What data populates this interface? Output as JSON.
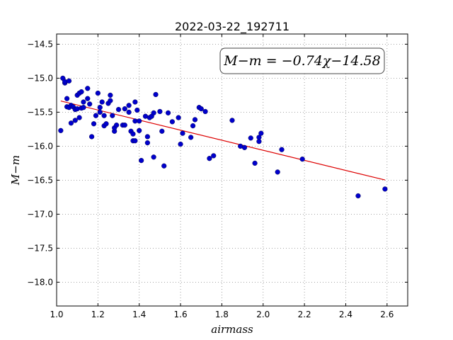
{
  "chart_data": {
    "type": "scatter",
    "title": "2022-03-22_192711",
    "xlabel": "airmass",
    "ylabel": "M−m",
    "xlim": [
      1.0,
      2.7
    ],
    "ylim": [
      -18.35,
      -14.35
    ],
    "y_inverted": true,
    "grid": true,
    "x_ticks": [
      1.0,
      1.2,
      1.4,
      1.6,
      1.8,
      2.0,
      2.2,
      2.4,
      2.6
    ],
    "x_tick_labels": [
      "1.0",
      "1.2",
      "1.4",
      "1.6",
      "1.8",
      "2.0",
      "2.2",
      "2.4",
      "2.6"
    ],
    "y_ticks": [
      -14.5,
      -15.0,
      -15.5,
      -16.0,
      -16.5,
      -17.0,
      -17.5,
      -18.0
    ],
    "y_tick_labels": [
      "−14.5",
      "−15.0",
      "−15.5",
      "−16.0",
      "−16.5",
      "−17.0",
      "−17.5",
      "−18.0"
    ],
    "annotation": "M−m = −0.74χ−14.58",
    "colors": {
      "points": "#0000cc",
      "fit": "#dd0000",
      "grid": "#888888"
    },
    "fit": {
      "slope": -0.74,
      "intercept": -14.58,
      "x_range": [
        1.02,
        2.59
      ]
    },
    "points": [
      {
        "x": 1.02,
        "y": -15.77
      },
      {
        "x": 1.03,
        "y": -15.0
      },
      {
        "x": 1.04,
        "y": -15.07
      },
      {
        "x": 1.04,
        "y": -15.05
      },
      {
        "x": 1.05,
        "y": -15.42
      },
      {
        "x": 1.05,
        "y": -15.3
      },
      {
        "x": 1.06,
        "y": -15.04
      },
      {
        "x": 1.06,
        "y": -15.43
      },
      {
        "x": 1.07,
        "y": -15.4
      },
      {
        "x": 1.07,
        "y": -15.66
      },
      {
        "x": 1.08,
        "y": -15.42
      },
      {
        "x": 1.09,
        "y": -15.46
      },
      {
        "x": 1.09,
        "y": -15.62
      },
      {
        "x": 1.1,
        "y": -15.45
      },
      {
        "x": 1.1,
        "y": -15.25
      },
      {
        "x": 1.11,
        "y": -15.22
      },
      {
        "x": 1.11,
        "y": -15.58
      },
      {
        "x": 1.12,
        "y": -15.2
      },
      {
        "x": 1.12,
        "y": -15.44
      },
      {
        "x": 1.13,
        "y": -15.43
      },
      {
        "x": 1.13,
        "y": -15.35
      },
      {
        "x": 1.15,
        "y": -15.15
      },
      {
        "x": 1.15,
        "y": -15.3
      },
      {
        "x": 1.16,
        "y": -15.38
      },
      {
        "x": 1.17,
        "y": -15.86
      },
      {
        "x": 1.18,
        "y": -15.67
      },
      {
        "x": 1.19,
        "y": -15.55
      },
      {
        "x": 1.2,
        "y": -15.22
      },
      {
        "x": 1.21,
        "y": -15.43
      },
      {
        "x": 1.21,
        "y": -15.5
      },
      {
        "x": 1.22,
        "y": -15.35
      },
      {
        "x": 1.23,
        "y": -15.55
      },
      {
        "x": 1.23,
        "y": -15.7
      },
      {
        "x": 1.24,
        "y": -15.67
      },
      {
        "x": 1.25,
        "y": -15.37
      },
      {
        "x": 1.26,
        "y": -15.33
      },
      {
        "x": 1.26,
        "y": -15.25
      },
      {
        "x": 1.27,
        "y": -15.55
      },
      {
        "x": 1.28,
        "y": -15.78
      },
      {
        "x": 1.28,
        "y": -15.73
      },
      {
        "x": 1.29,
        "y": -15.69
      },
      {
        "x": 1.3,
        "y": -15.46
      },
      {
        "x": 1.32,
        "y": -15.69
      },
      {
        "x": 1.33,
        "y": -15.69
      },
      {
        "x": 1.33,
        "y": -15.45
      },
      {
        "x": 1.35,
        "y": -15.4
      },
      {
        "x": 1.35,
        "y": -15.5
      },
      {
        "x": 1.36,
        "y": -15.78
      },
      {
        "x": 1.37,
        "y": -15.92
      },
      {
        "x": 1.37,
        "y": -15.82
      },
      {
        "x": 1.38,
        "y": -15.92
      },
      {
        "x": 1.38,
        "y": -15.63
      },
      {
        "x": 1.38,
        "y": -15.35
      },
      {
        "x": 1.39,
        "y": -15.47
      },
      {
        "x": 1.4,
        "y": -15.63
      },
      {
        "x": 1.4,
        "y": -15.77
      },
      {
        "x": 1.41,
        "y": -16.21
      },
      {
        "x": 1.43,
        "y": -15.56
      },
      {
        "x": 1.44,
        "y": -15.86
      },
      {
        "x": 1.44,
        "y": -15.95
      },
      {
        "x": 1.45,
        "y": -15.58
      },
      {
        "x": 1.46,
        "y": -15.56
      },
      {
        "x": 1.47,
        "y": -16.16
      },
      {
        "x": 1.47,
        "y": -15.51
      },
      {
        "x": 1.48,
        "y": -15.24
      },
      {
        "x": 1.5,
        "y": -15.49
      },
      {
        "x": 1.51,
        "y": -15.78
      },
      {
        "x": 1.52,
        "y": -16.29
      },
      {
        "x": 1.54,
        "y": -15.51
      },
      {
        "x": 1.56,
        "y": -15.64
      },
      {
        "x": 1.59,
        "y": -15.58
      },
      {
        "x": 1.6,
        "y": -15.97
      },
      {
        "x": 1.61,
        "y": -15.81
      },
      {
        "x": 1.65,
        "y": -15.87
      },
      {
        "x": 1.66,
        "y": -15.7
      },
      {
        "x": 1.67,
        "y": -15.61
      },
      {
        "x": 1.69,
        "y": -15.43
      },
      {
        "x": 1.7,
        "y": -15.45
      },
      {
        "x": 1.72,
        "y": -15.49
      },
      {
        "x": 1.74,
        "y": -16.18
      },
      {
        "x": 1.76,
        "y": -16.14
      },
      {
        "x": 1.85,
        "y": -15.62
      },
      {
        "x": 1.89,
        "y": -16.0
      },
      {
        "x": 1.91,
        "y": -16.02
      },
      {
        "x": 1.94,
        "y": -15.88
      },
      {
        "x": 1.96,
        "y": -16.25
      },
      {
        "x": 1.98,
        "y": -15.87
      },
      {
        "x": 1.98,
        "y": -15.93
      },
      {
        "x": 1.99,
        "y": -15.81
      },
      {
        "x": 2.07,
        "y": -16.38
      },
      {
        "x": 2.09,
        "y": -16.05
      },
      {
        "x": 2.19,
        "y": -16.19
      },
      {
        "x": 2.46,
        "y": -16.73
      },
      {
        "x": 2.59,
        "y": -16.63
      }
    ]
  }
}
